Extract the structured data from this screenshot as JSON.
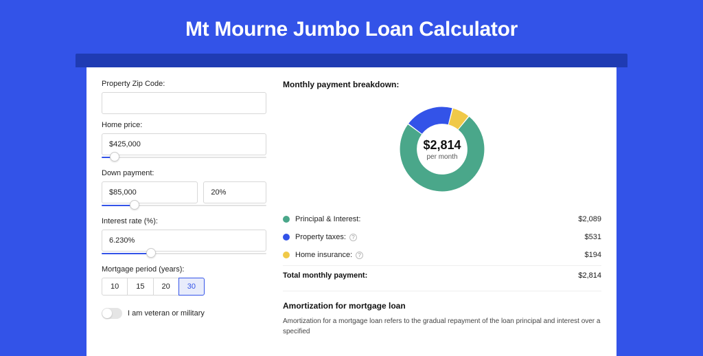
{
  "page": {
    "title": "Mt Mourne Jumbo Loan Calculator",
    "background_color": "#3353e8",
    "band_color": "#1f3bb3",
    "card_color": "#ffffff"
  },
  "form": {
    "zip_label": "Property Zip Code:",
    "zip_value": "",
    "home_price_label": "Home price:",
    "home_price_value": "$425,000",
    "home_price_slider_pct": 8,
    "down_payment_label": "Down payment:",
    "down_payment_value": "$85,000",
    "down_payment_pct_value": "20%",
    "down_payment_slider_pct": 20,
    "interest_label": "Interest rate (%):",
    "interest_value": "6.230%",
    "interest_slider_pct": 30,
    "period_label": "Mortgage period (years):",
    "period_options": [
      "10",
      "15",
      "20",
      "30"
    ],
    "period_selected_index": 3,
    "veteran_label": "I am veteran or military",
    "veteran_on": false
  },
  "breakdown": {
    "title": "Monthly payment breakdown:",
    "donut": {
      "amount": "$2,814",
      "sub": "per month",
      "segments": [
        {
          "name": "principal_interest",
          "value": 2089,
          "color": "#4aa78a"
        },
        {
          "name": "property_taxes",
          "value": 531,
          "color": "#3353e8"
        },
        {
          "name": "home_insurance",
          "value": 194,
          "color": "#f0c948"
        }
      ],
      "gap_deg": 1.5,
      "thickness_ratio": 0.2,
      "start_angle_deg": -50
    },
    "rows": [
      {
        "label": "Principal & Interest:",
        "value": "$2,089",
        "color": "#4aa78a",
        "info": false
      },
      {
        "label": "Property taxes:",
        "value": "$531",
        "color": "#3353e8",
        "info": true
      },
      {
        "label": "Home insurance:",
        "value": "$194",
        "color": "#f0c948",
        "info": true
      }
    ],
    "total_label": "Total monthly payment:",
    "total_value": "$2,814"
  },
  "amortization": {
    "title": "Amortization for mortgage loan",
    "text": "Amortization for a mortgage loan refers to the gradual repayment of the loan principal and interest over a specified"
  }
}
